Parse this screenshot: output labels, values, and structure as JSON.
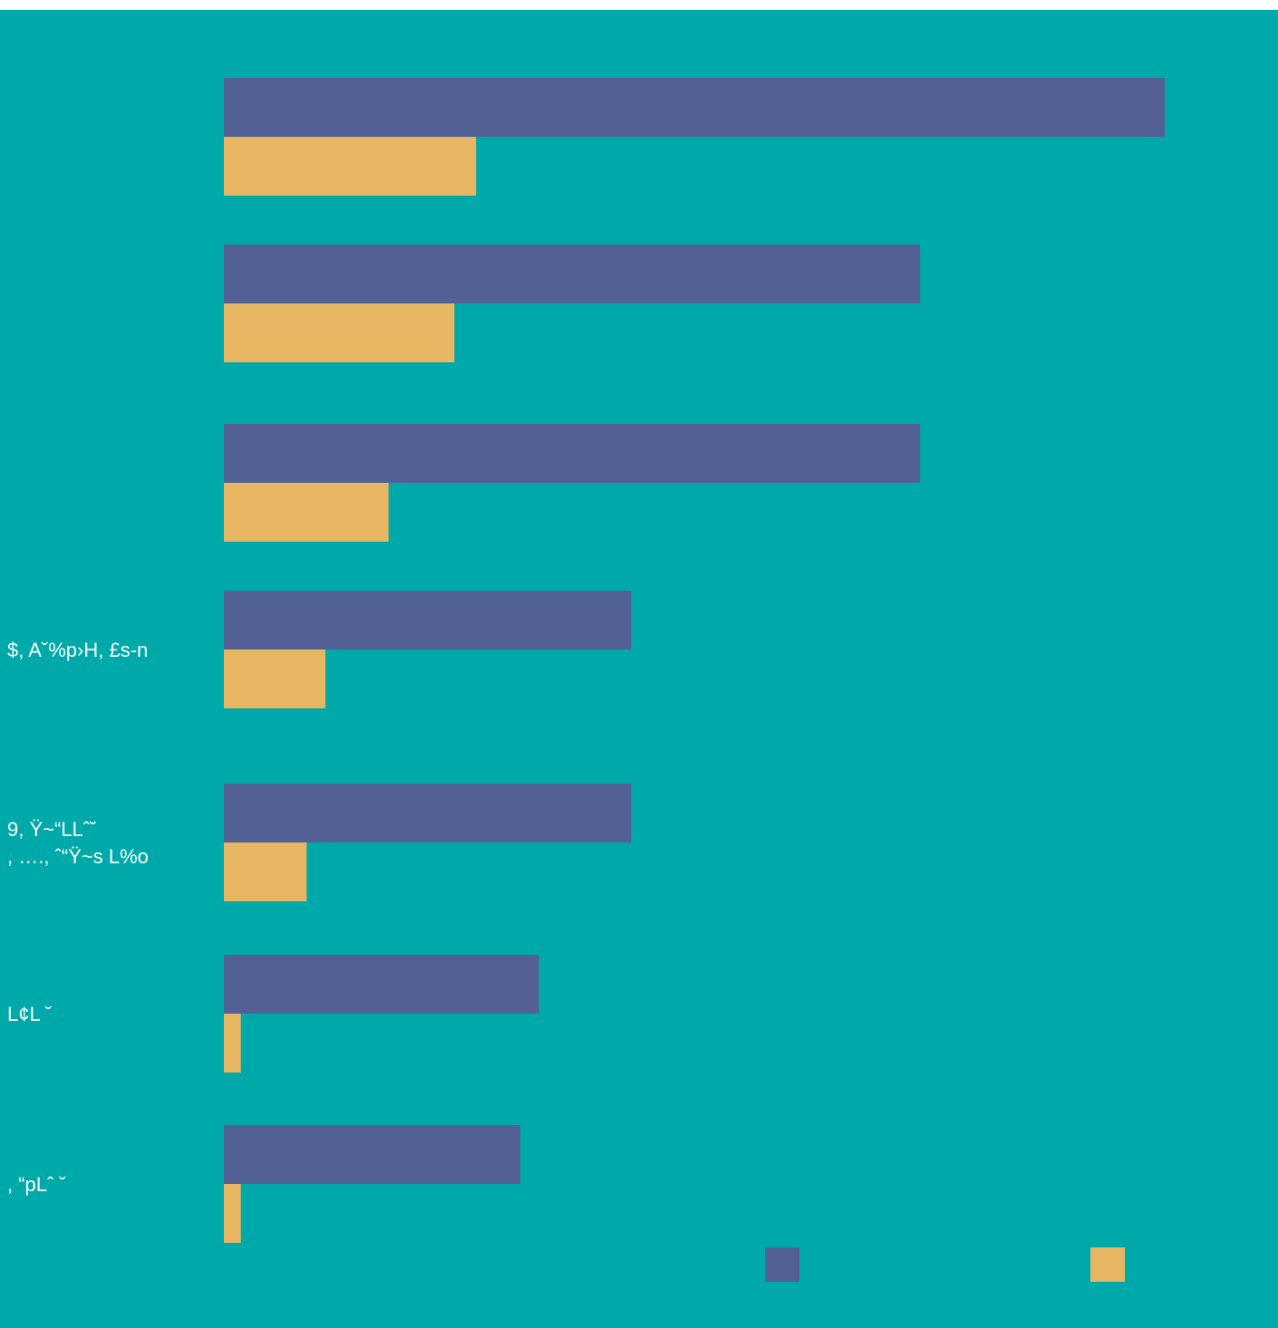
{
  "colors": {
    "background": "#00a9a9",
    "series_1": "#536094",
    "series_2": "#e7b663",
    "label_text": "#ffffff"
  },
  "chart_data": {
    "type": "bar",
    "orientation": "horizontal",
    "categories": [
      "",
      "",
      "",
      "$, A˘%p›H, £s‑n",
      "9,  Ÿ~“LLˆ˘\n, ….,  ˆ“Ÿ~s L%o",
      " L¢L  ˘",
      ", “pLˆ ˘"
    ],
    "series": [
      {
        "values": [
          100,
          74,
          74,
          43.3,
          43.3,
          33.5,
          31.5
        ]
      },
      {
        "values": [
          26.8,
          24.5,
          17.5,
          10.8,
          8.8,
          1.8,
          1.8
        ]
      }
    ],
    "xlim": [
      0,
      100
    ],
    "grid": false,
    "x_axis_visible": false,
    "legend": {
      "placement": "bottom-right"
    }
  }
}
